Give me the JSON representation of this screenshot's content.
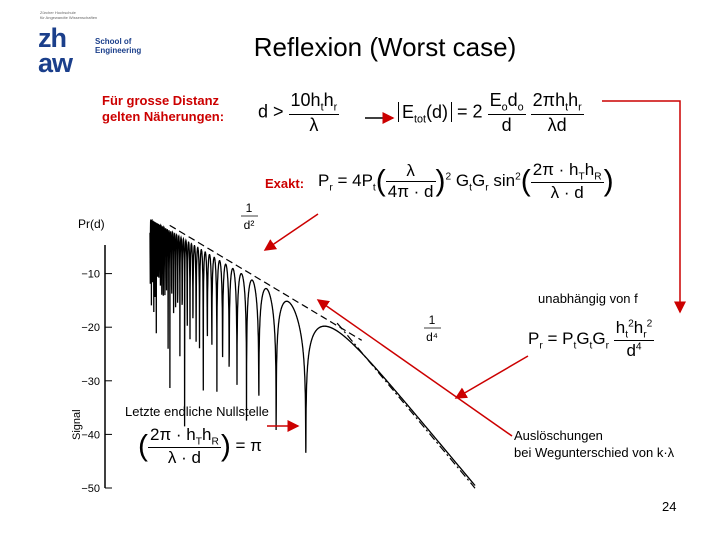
{
  "logo": {
    "tiny_line1": "Zürcher Hochschule",
    "tiny_line2": "für Angewandte Wissenschaften",
    "mark_line1": "zh",
    "mark_line2": "aw",
    "school_line1": "School of",
    "school_line2": "Engineering"
  },
  "title": "Reflexion (Worst case)",
  "approx": {
    "label_line1": "Für grosse Distanz",
    "label_line2": "gelten Näherungen:"
  },
  "exact": {
    "label": "Exakt:"
  },
  "annotations": {
    "unabhaengig": "unabhängig von f",
    "letzte_nullstelle": "Letzte endliche Nullstelle",
    "ausloeschungen_line1": "Auslöschungen",
    "ausloeschungen_line2": "bei Wegunterschied von k·λ"
  },
  "page_number": "24",
  "colors": {
    "accent_red": "#cc0000",
    "brand_blue": "#1b3f8b"
  },
  "chart_data": {
    "type": "line",
    "ylabel": "Signal",
    "y_title": "Pr(d)",
    "yticks": [
      "−10",
      "−20",
      "−30",
      "−40",
      "−50"
    ],
    "ylim": [
      -50,
      0
    ],
    "curve_labels": [
      "1/d²",
      "1/d⁴"
    ],
    "series": [
      {
        "name": "1/d²",
        "style": "dashed"
      },
      {
        "name": "1/d⁴",
        "style": "dash-dot"
      }
    ]
  }
}
